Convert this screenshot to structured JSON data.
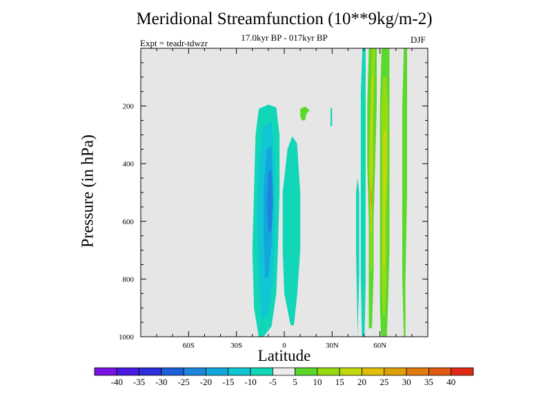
{
  "chart_data": {
    "type": "heatmap",
    "title": "Meridional Streamfunction (10**9kg/m-2)",
    "subtitle": "17.0kyr BP - 017kyr BP",
    "experiment": "Expt = teadr-tdwzr",
    "season": "DJF",
    "xlabel": "Latitude",
    "ylabel": "Pressure (in hPa)",
    "xlim": [
      -90,
      90
    ],
    "ylim": [
      1000,
      0
    ],
    "x_ticks": [
      {
        "value": -60,
        "label": "60S"
      },
      {
        "value": -30,
        "label": "30S"
      },
      {
        "value": 0,
        "label": "0"
      },
      {
        "value": 30,
        "label": "30N"
      },
      {
        "value": 60,
        "label": "60N"
      }
    ],
    "y_ticks": [
      {
        "value": 200,
        "label": "200"
      },
      {
        "value": 400,
        "label": "400"
      },
      {
        "value": 600,
        "label": "600"
      },
      {
        "value": 800,
        "label": "800"
      },
      {
        "value": 1000,
        "label": "1000"
      }
    ],
    "background_color": "#e6e6e6",
    "colorbar": {
      "levels": [
        "-40",
        "-35",
        "-30",
        "-25",
        "-20",
        "-15",
        "-10",
        "-5",
        "5",
        "10",
        "15",
        "20",
        "25",
        "30",
        "35",
        "40"
      ],
      "colors": [
        "#7a12e0",
        "#4a1ae0",
        "#2d2fdb",
        "#1e5fd8",
        "#1d86dc",
        "#12a6dc",
        "#10c6d4",
        "#12d6b8",
        "#ececec",
        "#5ad92c",
        "#96da14",
        "#c4d80e",
        "#e0be0a",
        "#e0a00c",
        "#e07c0e",
        "#e05812",
        "#e02a14"
      ]
    },
    "features": [
      {
        "name": "cell-minus10-large",
        "level": -10,
        "color": "#12d6b8",
        "pts": [
          [
            -16,
            1000
          ],
          [
            -19,
            900
          ],
          [
            -20,
            700
          ],
          [
            -19,
            500
          ],
          [
            -18,
            300
          ],
          [
            -16,
            210
          ],
          [
            -10,
            195
          ],
          [
            -5,
            205
          ],
          [
            -3,
            300
          ],
          [
            -3,
            500
          ],
          [
            -4,
            700
          ],
          [
            -5,
            850
          ],
          [
            -8,
            965
          ],
          [
            -13,
            1000
          ]
        ]
      },
      {
        "name": "cell-minus15",
        "level": -15,
        "color": "#10c6d4",
        "pts": [
          [
            -14,
            940
          ],
          [
            -16,
            800
          ],
          [
            -17,
            600
          ],
          [
            -16,
            400
          ],
          [
            -13,
            270
          ],
          [
            -8,
            255
          ],
          [
            -6,
            400
          ],
          [
            -6,
            600
          ],
          [
            -7,
            800
          ],
          [
            -10,
            920
          ]
        ]
      },
      {
        "name": "cell-minus20",
        "level": -20,
        "color": "#12a6dc",
        "pts": [
          [
            -12,
            800
          ],
          [
            -13,
            650
          ],
          [
            -13,
            500
          ],
          [
            -11,
            350
          ],
          [
            -8,
            340
          ],
          [
            -7,
            500
          ],
          [
            -8,
            680
          ],
          [
            -10,
            790
          ]
        ]
      },
      {
        "name": "cell-minus25-core",
        "level": -25,
        "color": "#1d86dc",
        "pts": [
          [
            -10,
            640
          ],
          [
            -11,
            540
          ],
          [
            -10,
            430
          ],
          [
            -8,
            420
          ],
          [
            -7,
            540
          ],
          [
            -8,
            630
          ]
        ]
      },
      {
        "name": "cell-minus10-east",
        "level": -10,
        "color": "#12d6b8",
        "pts": [
          [
            4,
            960
          ],
          [
            0,
            850
          ],
          [
            -1,
            700
          ],
          [
            -1,
            500
          ],
          [
            2,
            350
          ],
          [
            5,
            305
          ],
          [
            8,
            330
          ],
          [
            10,
            500
          ],
          [
            10,
            700
          ],
          [
            8,
            860
          ],
          [
            6,
            960
          ]
        ]
      },
      {
        "name": "cell-minus10-dot",
        "level": -10,
        "color": "#12d6b8",
        "pts": [
          [
            29,
            270
          ],
          [
            29,
            210
          ],
          [
            30,
            205
          ],
          [
            30,
            270
          ]
        ]
      },
      {
        "name": "cell-plus5-blob",
        "level": 10,
        "color": "#5ad92c",
        "pts": [
          [
            10,
            235
          ],
          [
            10,
            210
          ],
          [
            13,
            202
          ],
          [
            16,
            215
          ],
          [
            14,
            225
          ],
          [
            13,
            250
          ],
          [
            11,
            250
          ]
        ]
      },
      {
        "name": "strip-minus5-a",
        "level": -10,
        "color": "#12d6b8",
        "pts": [
          [
            46,
            1000
          ],
          [
            45,
            700
          ],
          [
            45,
            500
          ],
          [
            46,
            450
          ],
          [
            47,
            500
          ],
          [
            47,
            780
          ],
          [
            46,
            1000
          ]
        ]
      },
      {
        "name": "strip-minus10-b",
        "level": -10,
        "color": "#12d6b8",
        "pts": [
          [
            49,
            1090
          ],
          [
            48,
            800
          ],
          [
            48,
            500
          ],
          [
            48,
            150
          ],
          [
            49,
            0
          ],
          [
            51,
            0
          ],
          [
            51,
            200
          ],
          [
            51,
            500
          ],
          [
            51,
            800
          ],
          [
            50,
            1100
          ]
        ]
      },
      {
        "name": "strip-plus10-a",
        "level": 10,
        "color": "#5ad92c",
        "pts": [
          [
            53,
            970
          ],
          [
            53,
            600
          ],
          [
            52,
            400
          ],
          [
            52,
            200
          ],
          [
            53,
            0
          ],
          [
            58,
            0
          ],
          [
            58,
            200
          ],
          [
            57,
            400
          ],
          [
            56,
            600
          ],
          [
            56,
            780
          ],
          [
            55,
            970
          ]
        ]
      },
      {
        "name": "strip-plus15-a",
        "level": 15,
        "color": "#96da14",
        "pts": [
          [
            54,
            780
          ],
          [
            54,
            600
          ],
          [
            53,
            400
          ],
          [
            54,
            200
          ],
          [
            55,
            0
          ],
          [
            57,
            0
          ],
          [
            56,
            200
          ],
          [
            56,
            400
          ],
          [
            55,
            600
          ],
          [
            55,
            760
          ]
        ]
      },
      {
        "name": "strip-plus20-a",
        "level": 20,
        "color": "#c4d80e",
        "pts": [
          [
            54,
            640
          ],
          [
            54,
            500
          ],
          [
            54,
            300
          ],
          [
            55,
            100
          ],
          [
            56,
            100
          ],
          [
            55,
            300
          ],
          [
            55,
            500
          ],
          [
            55,
            630
          ]
        ]
      },
      {
        "name": "strip-plus25-a",
        "level": 25,
        "color": "#e0be0a",
        "pts": [
          [
            54,
            560
          ],
          [
            54,
            480
          ],
          [
            55,
            420
          ],
          [
            55,
            500
          ],
          [
            55,
            560
          ]
        ]
      },
      {
        "name": "strip-plus30-a",
        "level": 30,
        "color": "#e0a00c",
        "pts": [
          [
            54,
            540
          ],
          [
            54,
            500
          ],
          [
            55,
            480
          ],
          [
            55,
            540
          ]
        ]
      },
      {
        "name": "strip-plus10-b",
        "level": 10,
        "color": "#5ad92c",
        "pts": [
          [
            61,
            1050
          ],
          [
            60,
            900
          ],
          [
            60,
            700
          ],
          [
            60,
            400
          ],
          [
            60,
            200
          ],
          [
            61,
            0
          ],
          [
            66,
            0
          ],
          [
            66,
            200
          ],
          [
            66,
            400
          ],
          [
            66,
            700
          ],
          [
            65,
            900
          ],
          [
            64,
            1050
          ]
        ]
      },
      {
        "name": "strip-plus15-b",
        "level": 15,
        "color": "#96da14",
        "pts": [
          [
            62,
            930
          ],
          [
            61,
            800
          ],
          [
            61,
            600
          ],
          [
            61,
            400
          ],
          [
            61,
            200
          ],
          [
            62,
            100
          ],
          [
            64,
            100
          ],
          [
            65,
            200
          ],
          [
            65,
            400
          ],
          [
            64,
            600
          ],
          [
            64,
            800
          ],
          [
            63,
            930
          ]
        ]
      },
      {
        "name": "strip-plus20-b",
        "level": 20,
        "color": "#c4d80e",
        "pts": [
          [
            62,
            760
          ],
          [
            62,
            600
          ],
          [
            62,
            400
          ],
          [
            62,
            300
          ],
          [
            63,
            280
          ],
          [
            64,
            300
          ],
          [
            64,
            450
          ],
          [
            63,
            600
          ],
          [
            63,
            750
          ]
        ]
      },
      {
        "name": "strip-plus10-c",
        "level": 10,
        "color": "#5ad92c",
        "pts": [
          [
            75,
            1000
          ],
          [
            74,
            800
          ],
          [
            74,
            500
          ],
          [
            74,
            200
          ],
          [
            75,
            0
          ],
          [
            77,
            0
          ],
          [
            77,
            200
          ],
          [
            77,
            500
          ],
          [
            76,
            800
          ],
          [
            76,
            1000
          ]
        ]
      }
    ]
  }
}
